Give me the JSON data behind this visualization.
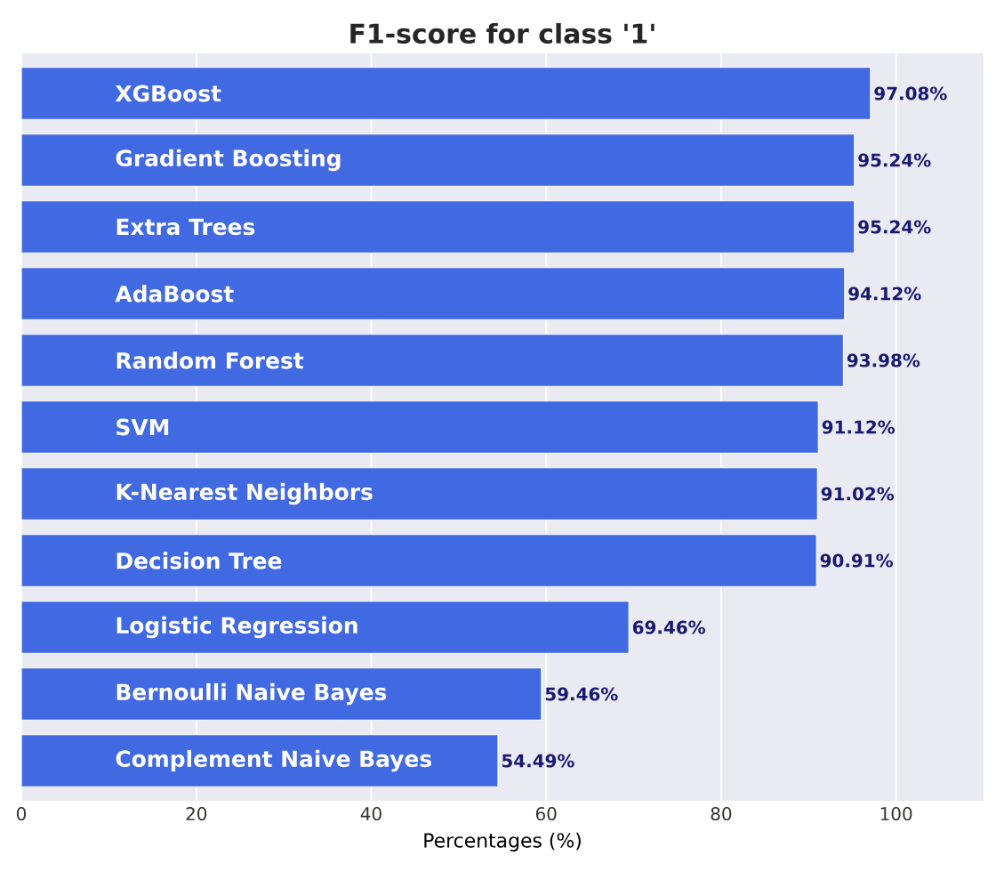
{
  "chart_data": {
    "type": "bar",
    "orientation": "horizontal",
    "title": "F1-score for class '1'",
    "xlabel": "Percentages (%)",
    "categories": [
      "XGBoost",
      "Gradient Boosting",
      "Extra Trees",
      "AdaBoost",
      "Random Forest",
      "SVM",
      "K-Nearest Neighbors",
      "Decision Tree",
      "Logistic Regression",
      "Bernoulli Naive Bayes",
      "Complement Naive Bayes"
    ],
    "values": [
      97.08,
      95.24,
      95.24,
      94.12,
      93.98,
      91.12,
      91.02,
      90.91,
      69.46,
      59.46,
      54.49
    ],
    "value_labels": [
      "97.08%",
      "95.24%",
      "95.24%",
      "94.12%",
      "93.98%",
      "91.12%",
      "91.02%",
      "90.91%",
      "69.46%",
      "59.46%",
      "54.49%"
    ],
    "color": "#4169e1",
    "xlim": [
      0,
      110
    ],
    "xticks": [
      0,
      20,
      40,
      60,
      80,
      100
    ],
    "grid": "x"
  }
}
